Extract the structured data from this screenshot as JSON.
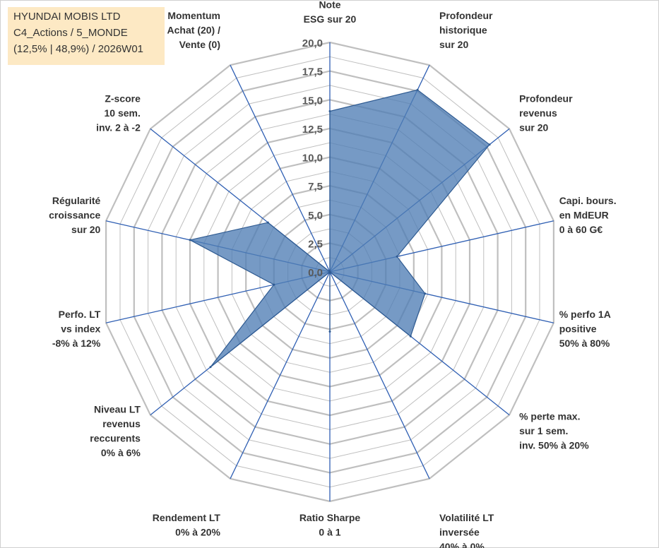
{
  "header": {
    "lines": [
      "HYUNDAI MOBIS LTD",
      "C4_Actions / 5_MONDE",
      "(12,5% | 48,9%) / 2026W01"
    ]
  },
  "colors": {
    "fill": "#4f7db5",
    "stroke": "#2e5a91",
    "grid": "#bfbfbf",
    "axis": "#2f5fb3",
    "header_bg": "#fde9c4"
  },
  "chart_data": {
    "type": "radar",
    "rmin": 0,
    "rmax": 20,
    "tick_labels": [
      "0,0",
      "2,5",
      "5,0",
      "7,5",
      "10,0",
      "12,5",
      "15,0",
      "17,5",
      "20,0"
    ],
    "axes": [
      {
        "label": [
          "Note",
          "ESG sur 20"
        ],
        "value": 14.0
      },
      {
        "label": [
          "Profondeur",
          "historique",
          "sur 20"
        ],
        "value": 17.6
      },
      {
        "label": [
          "Profondeur",
          "revenus",
          "sur 20"
        ],
        "value": 17.8
      },
      {
        "label": [
          "Capi. bours.",
          "en MdEUR",
          "0 à 60 G€"
        ],
        "value": 6.0
      },
      {
        "label": [
          "% perfo 1A",
          "positive",
          "50% à 80%"
        ],
        "value": 8.5
      },
      {
        "label": [
          "% perte max.",
          "sur 1 sem.",
          "inv. 50% à 20%"
        ],
        "value": 9.0
      },
      {
        "label": [
          "Volatilité LT",
          "inversée",
          "40% à 0%"
        ],
        "value": 0.0
      },
      {
        "label": [
          "Ratio Sharpe",
          "0 à 1"
        ],
        "value": 5.2
      },
      {
        "label": [
          "Rendement LT",
          "0% à 20%"
        ],
        "value": 0.0
      },
      {
        "label": [
          "Niveau LT",
          "revenus",
          "reccurents",
          "0% à 6%"
        ],
        "value": 13.3
      },
      {
        "label": [
          "Perfo. LT",
          "vs index",
          "-8% à 12%"
        ],
        "value": 5.0
      },
      {
        "label": [
          "Régularité",
          "croissance",
          "sur 20"
        ],
        "value": 12.5
      },
      {
        "label": [
          "Z-score",
          "10 sem.",
          "inv. 2 à -2"
        ],
        "value": 6.9
      },
      {
        "label": [
          "Momentum",
          "Achat (20) /",
          "Vente (0)"
        ],
        "value": 0.0
      }
    ]
  }
}
